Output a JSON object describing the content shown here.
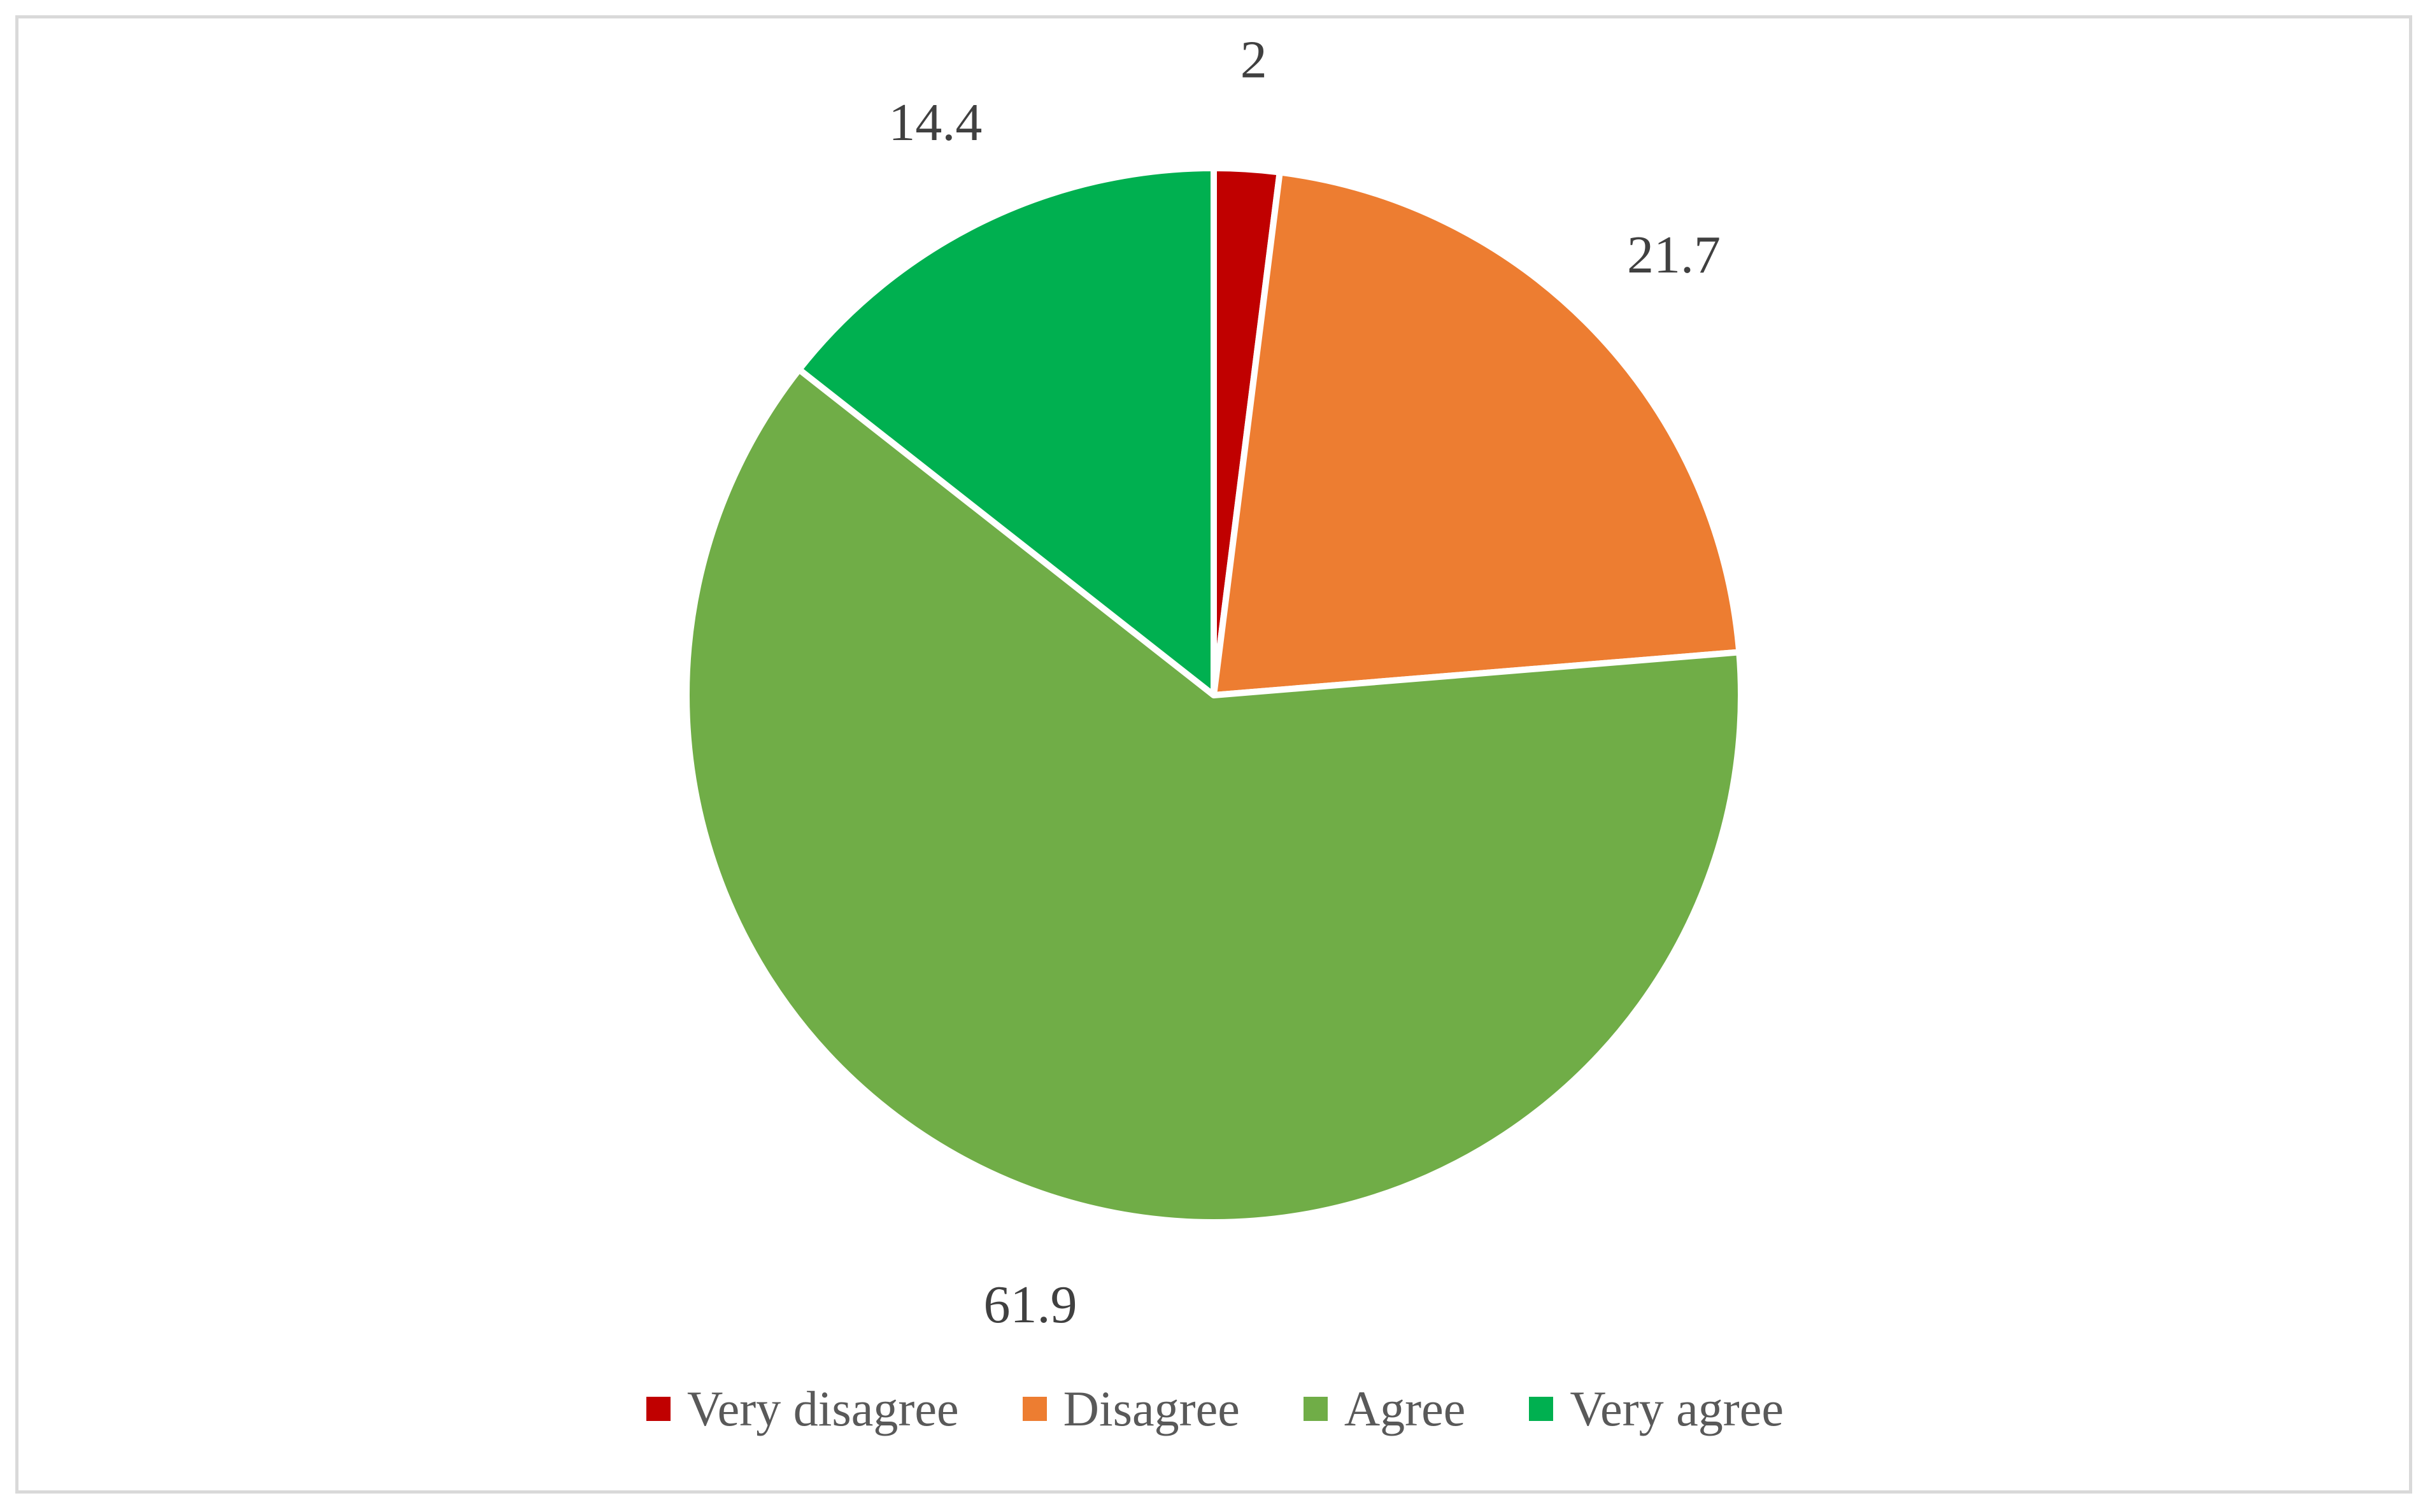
{
  "chart_data": {
    "type": "pie",
    "title": "",
    "categories": [
      "Very disagree",
      "Disagree",
      "Agree",
      "Very agree"
    ],
    "values": [
      2,
      21.7,
      61.9,
      14.4
    ],
    "value_labels": [
      "2",
      "21.7",
      "61.9",
      "14.4"
    ],
    "colors": [
      "#c00000",
      "#ed7d31",
      "#70ad47",
      "#00b050"
    ],
    "legend_position": "bottom",
    "start_angle": "12 o'clock, clockwise"
  }
}
